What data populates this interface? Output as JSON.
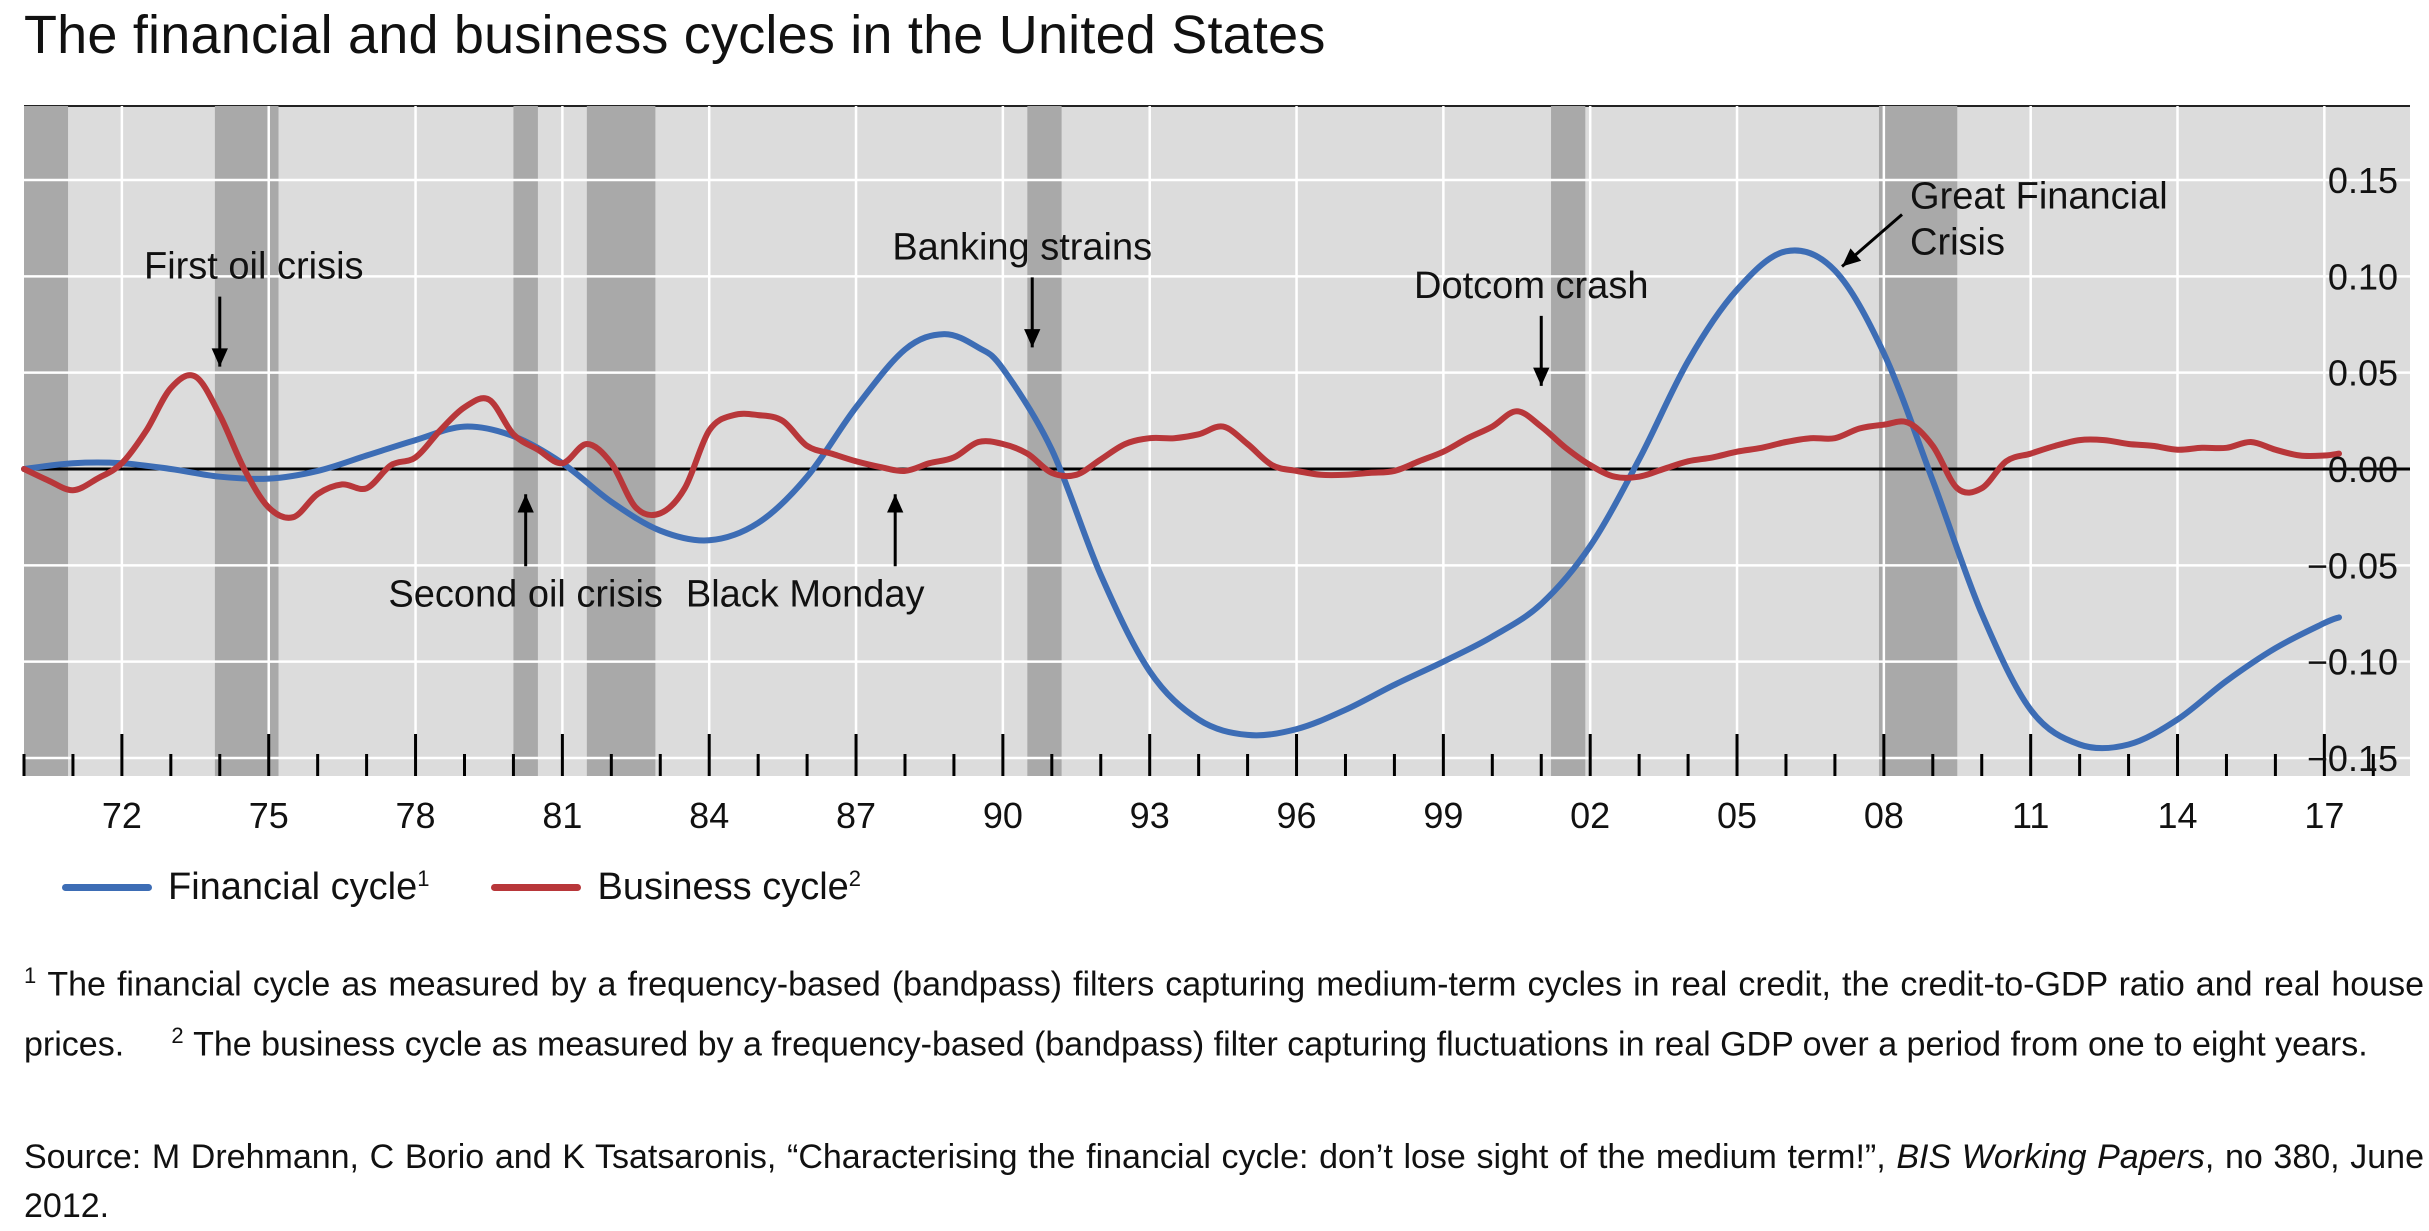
{
  "title": "The financial and business cycles in the United States",
  "chart_data": {
    "type": "line",
    "title": "The financial and business cycles in the United States",
    "x_ticks": [
      {
        "year": 1972,
        "label": "72"
      },
      {
        "year": 1975,
        "label": "75"
      },
      {
        "year": 1978,
        "label": "78"
      },
      {
        "year": 1981,
        "label": "81"
      },
      {
        "year": 1984,
        "label": "84"
      },
      {
        "year": 1987,
        "label": "87"
      },
      {
        "year": 1990,
        "label": "90"
      },
      {
        "year": 1993,
        "label": "93"
      },
      {
        "year": 1996,
        "label": "96"
      },
      {
        "year": 1999,
        "label": "99"
      },
      {
        "year": 2002,
        "label": "02"
      },
      {
        "year": 2005,
        "label": "05"
      },
      {
        "year": 2008,
        "label": "08"
      },
      {
        "year": 2011,
        "label": "11"
      },
      {
        "year": 2014,
        "label": "14"
      },
      {
        "year": 2017,
        "label": "17"
      }
    ],
    "xlim": [
      1970.0,
      2018.75
    ],
    "ylim": [
      -0.15,
      0.15
    ],
    "y_ticks": [
      {
        "value": 0.15,
        "label": "0.15"
      },
      {
        "value": 0.1,
        "label": "0.10"
      },
      {
        "value": 0.05,
        "label": "0.05"
      },
      {
        "value": 0.0,
        "label": "0.00"
      },
      {
        "value": -0.05,
        "label": "−0.05"
      },
      {
        "value": -0.1,
        "label": "−0.10"
      },
      {
        "value": -0.15,
        "label": "−0.15"
      }
    ],
    "recessions": [
      [
        1970.0,
        1970.9
      ],
      [
        1973.9,
        1975.2
      ],
      [
        1980.0,
        1980.5
      ],
      [
        1981.5,
        1982.9
      ],
      [
        1990.5,
        1991.2
      ],
      [
        2001.2,
        2001.9
      ],
      [
        2007.9,
        2009.5
      ]
    ],
    "series": [
      {
        "name": "Financial cycle",
        "sup": "1",
        "color": "#3d6db5",
        "x": [
          1970.0,
          1971.0,
          1972.0,
          1973.0,
          1974.0,
          1975.0,
          1976.0,
          1977.0,
          1978.0,
          1979.0,
          1980.0,
          1981.0,
          1982.0,
          1983.0,
          1984.0,
          1985.0,
          1986.0,
          1987.0,
          1988.0,
          1988.8,
          1989.5,
          1990.0,
          1991.0,
          1992.0,
          1993.0,
          1994.0,
          1995.0,
          1996.0,
          1997.0,
          1998.0,
          1999.0,
          2000.0,
          2001.0,
          2002.0,
          2003.0,
          2004.0,
          2005.0,
          2006.0,
          2007.0,
          2008.0,
          2009.0,
          2010.0,
          2011.0,
          2012.0,
          2013.0,
          2014.0,
          2015.0,
          2016.0,
          2017.0,
          2017.3
        ],
        "y": [
          0.0,
          0.003,
          0.003,
          0.0,
          -0.004,
          -0.005,
          -0.001,
          0.007,
          0.015,
          0.022,
          0.017,
          0.003,
          -0.017,
          -0.032,
          -0.037,
          -0.028,
          -0.004,
          0.032,
          0.062,
          0.07,
          0.063,
          0.052,
          0.01,
          -0.055,
          -0.105,
          -0.13,
          -0.138,
          -0.135,
          -0.125,
          -0.112,
          -0.1,
          -0.087,
          -0.07,
          -0.04,
          0.005,
          0.056,
          0.093,
          0.113,
          0.103,
          0.06,
          -0.006,
          -0.075,
          -0.125,
          -0.143,
          -0.143,
          -0.13,
          -0.11,
          -0.093,
          -0.08,
          -0.077
        ]
      },
      {
        "name": "Business cycle",
        "sup": "2",
        "color": "#b8373a",
        "x": [
          1970.0,
          1970.5,
          1971.0,
          1971.5,
          1972.0,
          1972.5,
          1973.0,
          1973.5,
          1974.0,
          1974.5,
          1975.0,
          1975.5,
          1976.0,
          1976.5,
          1977.0,
          1977.5,
          1978.0,
          1978.5,
          1979.0,
          1979.5,
          1980.0,
          1980.5,
          1981.0,
          1981.5,
          1982.0,
          1982.5,
          1983.0,
          1983.5,
          1984.0,
          1984.5,
          1985.0,
          1985.5,
          1986.0,
          1986.5,
          1987.0,
          1987.5,
          1988.0,
          1988.5,
          1989.0,
          1989.5,
          1990.0,
          1990.5,
          1991.0,
          1991.5,
          1992.0,
          1992.5,
          1993.0,
          1993.5,
          1994.0,
          1994.5,
          1995.0,
          1995.5,
          1996.0,
          1996.5,
          1997.0,
          1997.5,
          1998.0,
          1998.5,
          1999.0,
          1999.5,
          2000.0,
          2000.5,
          2001.0,
          2001.5,
          2002.0,
          2002.5,
          2003.0,
          2003.5,
          2004.0,
          2004.5,
          2005.0,
          2005.5,
          2006.0,
          2006.5,
          2007.0,
          2007.5,
          2008.0,
          2008.5,
          2009.0,
          2009.5,
          2010.0,
          2010.5,
          2011.0,
          2011.5,
          2012.0,
          2012.5,
          2013.0,
          2013.5,
          2014.0,
          2014.5,
          2015.0,
          2015.5,
          2016.0,
          2016.5,
          2017.0,
          2017.3
        ],
        "y": [
          0.0,
          -0.006,
          -0.011,
          -0.005,
          0.003,
          0.02,
          0.042,
          0.048,
          0.028,
          0.0,
          -0.02,
          -0.025,
          -0.013,
          -0.008,
          -0.01,
          0.002,
          0.006,
          0.02,
          0.032,
          0.036,
          0.018,
          0.01,
          0.003,
          0.013,
          0.003,
          -0.02,
          -0.023,
          -0.01,
          0.02,
          0.028,
          0.028,
          0.025,
          0.012,
          0.008,
          0.004,
          0.001,
          -0.001,
          0.003,
          0.006,
          0.014,
          0.013,
          0.008,
          -0.002,
          -0.003,
          0.005,
          0.013,
          0.016,
          0.016,
          0.018,
          0.022,
          0.013,
          0.002,
          -0.001,
          -0.003,
          -0.003,
          -0.002,
          -0.001,
          0.004,
          0.009,
          0.016,
          0.022,
          0.03,
          0.022,
          0.011,
          0.002,
          -0.004,
          -0.004,
          0.0,
          0.004,
          0.006,
          0.009,
          0.011,
          0.014,
          0.016,
          0.016,
          0.021,
          0.023,
          0.024,
          0.012,
          -0.01,
          -0.01,
          0.004,
          0.008,
          0.012,
          0.015,
          0.015,
          0.013,
          0.012,
          0.01,
          0.011,
          0.011,
          0.014,
          0.01,
          0.007,
          0.007,
          0.008
        ]
      }
    ],
    "annotations": [
      {
        "text": "First oil crisis",
        "arrow_year": 1974.0,
        "arrow_value": 0.05,
        "side": "above"
      },
      {
        "text": "Second oil crisis",
        "arrow_year": 1980.25,
        "arrow_value": -0.01,
        "side": "below"
      },
      {
        "text": "Black Monday",
        "arrow_year": 1987.8,
        "arrow_value": -0.01,
        "side": "below"
      },
      {
        "text": "Banking strains",
        "arrow_year": 1990.6,
        "arrow_value": 0.06,
        "side": "above"
      },
      {
        "text": "Dotcom crash",
        "arrow_year": 2001.0,
        "arrow_value": 0.04,
        "side": "above"
      },
      {
        "text": "Great Financial",
        "text2": "Crisis",
        "arrow_year": 2006.9,
        "arrow_value": 0.103,
        "side": "right"
      }
    ],
    "grid": true,
    "legend_position": "bottom-left"
  },
  "footnote1": {
    "mark": "1",
    "text": "The financial cycle as measured by a frequency-based (bandpass) filters capturing medium-term cycles in real credit, the credit-to-GDP ratio and real house prices."
  },
  "footnote2": {
    "mark": "2",
    "text": "The business cycle as measured by a frequency-based (bandpass) filter capturing fluctuations in real GDP over a period from one to eight years."
  },
  "source": {
    "prefix": "Source: M Drehmann, C Borio and K Tsatsaronis, “Characterising the financial cycle: don’t lose sight of the medium term!”,",
    "italic": "BIS Working Papers",
    "suffix": ", no 380, June 2012."
  }
}
